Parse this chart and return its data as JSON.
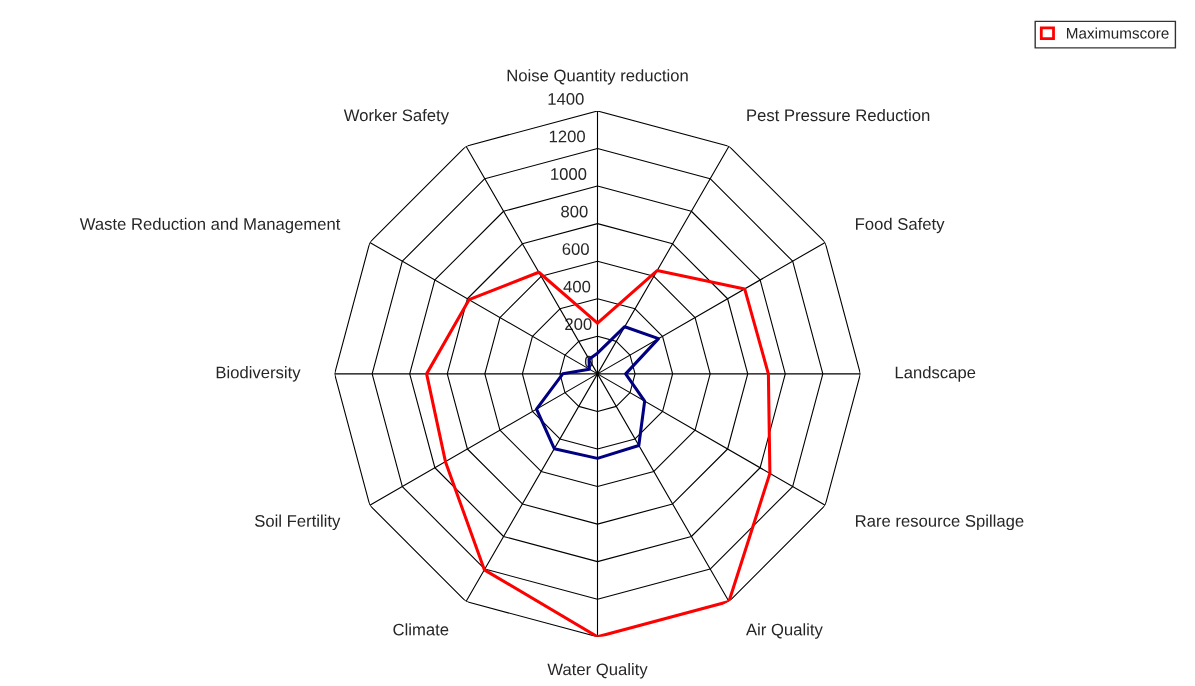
{
  "chart_data": {
    "type": "radar",
    "categories": [
      "Noise Quantity reduction",
      "Pest Pressure Reduction",
      "Food Safety",
      "Landscape",
      "Rare resource Spillage",
      "Air Quality",
      "Water Quality",
      "Climate",
      "Soil Fertility",
      "Biodiversity",
      "Waste Reduction and Management",
      "Worker Safety"
    ],
    "series": [
      {
        "color": "#000080",
        "values": [
          110,
          290,
          375,
          150,
          290,
          440,
          450,
          460,
          375,
          185,
          50,
          90
        ]
      },
      {
        "name": "Maximumscore",
        "color": "#ff0000",
        "values": [
          270,
          635,
          905,
          910,
          1060,
          1400,
          1400,
          1205,
          935,
          910,
          790,
          625
        ]
      }
    ],
    "ylim": [
      0,
      1400
    ],
    "yticks": [
      0,
      200,
      400,
      600,
      800,
      1000,
      1200,
      1400
    ],
    "grid": true,
    "legend": "top right",
    "marker": "none",
    "line_style": "solid"
  }
}
